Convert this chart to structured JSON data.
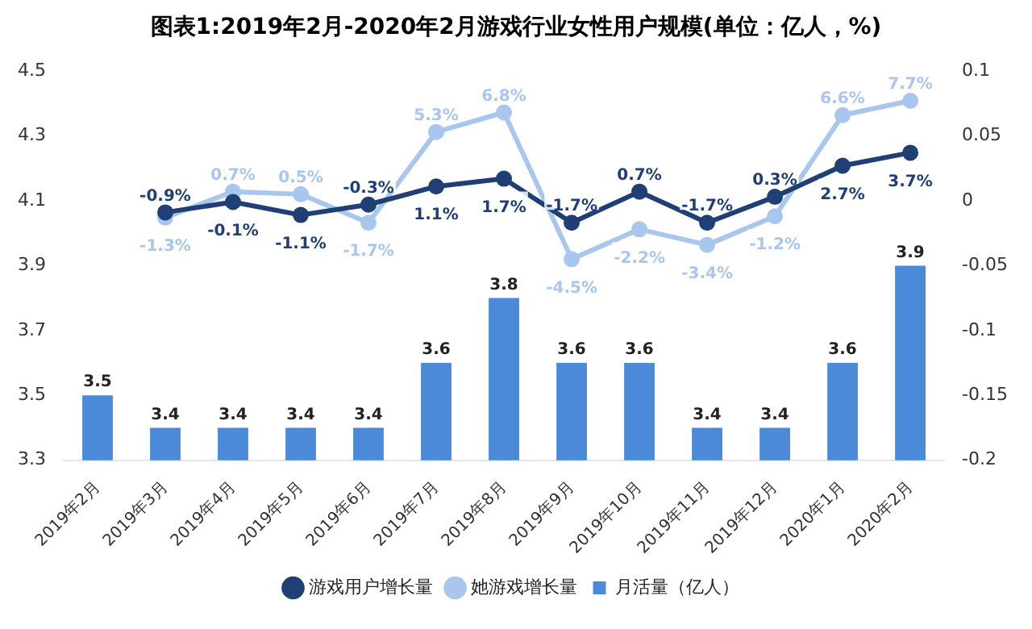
{
  "chart_data": {
    "type": "bar",
    "title": "图表1:2019年2月-2020年2月游戏行业女性用户规模(单位：亿人，%)",
    "categories": [
      "2019年2月",
      "2019年3月",
      "2019年4月",
      "2019年5月",
      "2019年6月",
      "2019年7月",
      "2019年8月",
      "2019年9月",
      "2019年10月",
      "2019年11月",
      "2019年12月",
      "2020年1月",
      "2020年2月"
    ],
    "series": [
      {
        "name": "月活量（亿人）",
        "color": "#4a8ad8",
        "values": [
          3.5,
          3.4,
          3.4,
          3.4,
          3.4,
          3.6,
          3.8,
          3.6,
          3.6,
          3.4,
          3.4,
          3.6,
          3.9
        ],
        "value_labels": [
          "3.5",
          "3.4",
          "3.4",
          "3.4",
          "3.4",
          "3.6",
          "3.8",
          "3.6",
          "3.6",
          "3.4",
          "3.4",
          "3.6",
          "3.9"
        ]
      },
      {
        "name": "游戏用户增长量",
        "type": "line",
        "axis": "y2",
        "color": "#1f3f75",
        "values": [
          null,
          -0.009,
          -0.001,
          -0.011,
          -0.003,
          0.011,
          0.017,
          -0.017,
          0.007,
          -0.017,
          0.003,
          0.027,
          0.037
        ],
        "value_labels": [
          null,
          "-0.9%",
          "-0.1%",
          "-1.1%",
          "-0.3%",
          "1.1%",
          "1.7%",
          "-1.7%",
          "0.7%",
          "-1.7%",
          "0.3%",
          "2.7%",
          "3.7%"
        ]
      },
      {
        "name": "她游戏增长量",
        "type": "line",
        "axis": "y2",
        "color": "#a8c6ee",
        "values": [
          null,
          -0.013,
          0.007,
          0.005,
          -0.017,
          0.053,
          0.068,
          -0.045,
          -0.022,
          -0.034,
          -0.012,
          0.066,
          0.077
        ],
        "value_labels": [
          null,
          "-1.3%",
          "0.7%",
          "0.5%",
          "-1.7%",
          "5.3%",
          "6.8%",
          "-4.5%",
          "-2.2%",
          "-3.4%",
          "-1.2%",
          "6.6%",
          "7.7%"
        ]
      }
    ],
    "ylim": [
      3.3,
      4.5
    ],
    "yticks": [
      3.3,
      3.5,
      3.7,
      3.9,
      4.1,
      4.3,
      4.5
    ],
    "y2lim": [
      -0.2,
      0.1
    ],
    "y2ticks": [
      -0.2,
      -0.15,
      -0.1,
      -0.05,
      0,
      0.05,
      0.1
    ],
    "marker": "circle",
    "legend": "bottom",
    "grid": false
  }
}
